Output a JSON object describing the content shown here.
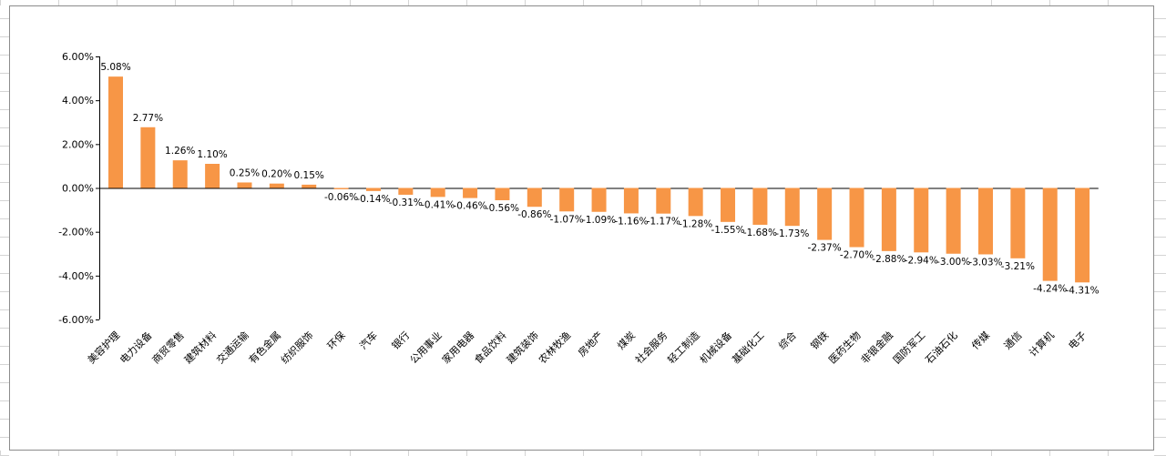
{
  "chart_data": {
    "type": "bar",
    "title": "",
    "xlabel": "",
    "ylabel": "",
    "ylim": [
      -6,
      6
    ],
    "yticks": [
      6,
      4,
      2,
      0,
      -2,
      -4,
      -6
    ],
    "ytick_labels": [
      "6.00%",
      "4.00%",
      "2.00%",
      "0.00%",
      "-2.00%",
      "-4.00%",
      "-6.00%"
    ],
    "grid": false,
    "legend": "none",
    "bar_color": "#F79646",
    "categories": [
      "美容护理",
      "电力设备",
      "商贸零售",
      "建筑材料",
      "交通运输",
      "有色金属",
      "纺织服饰",
      "环保",
      "汽车",
      "银行",
      "公用事业",
      "家用电器",
      "食品饮料",
      "建筑装饰",
      "农林牧渔",
      "房地产",
      "煤炭",
      "社会服务",
      "轻工制造",
      "机械设备",
      "基础化工",
      "综合",
      "钢铁",
      "医药生物",
      "非银金融",
      "国防军工",
      "石油石化",
      "传媒",
      "通信",
      "计算机",
      "电子"
    ],
    "values": [
      5.08,
      2.77,
      1.26,
      1.1,
      0.25,
      0.2,
      0.15,
      -0.06,
      -0.14,
      -0.31,
      -0.41,
      -0.46,
      -0.56,
      -0.86,
      -1.07,
      -1.09,
      -1.16,
      -1.17,
      -1.28,
      -1.55,
      -1.68,
      -1.73,
      -2.37,
      -2.7,
      -2.88,
      -2.94,
      -3.0,
      -3.03,
      -3.21,
      -4.24,
      -4.31
    ],
    "value_labels": [
      "5.08%",
      "2.77%",
      "1.26%",
      "1.10%",
      "0.25%",
      "0.20%",
      "0.15%",
      "-0.06%",
      "-0.14%",
      "-0.31%",
      "-0.41%",
      "-0.46%",
      "-0.56%",
      "-0.86%",
      "-1.07%",
      "-1.09%",
      "-1.16%",
      "-1.17%",
      "-1.28%",
      "-1.55%",
      "-1.68%",
      "-1.73%",
      "-2.37%",
      "-2.70%",
      "-2.88%",
      "-2.94%",
      "-3.00%",
      "-3.03%",
      "-3.21%",
      "-4.24%",
      "-4.31%"
    ]
  }
}
